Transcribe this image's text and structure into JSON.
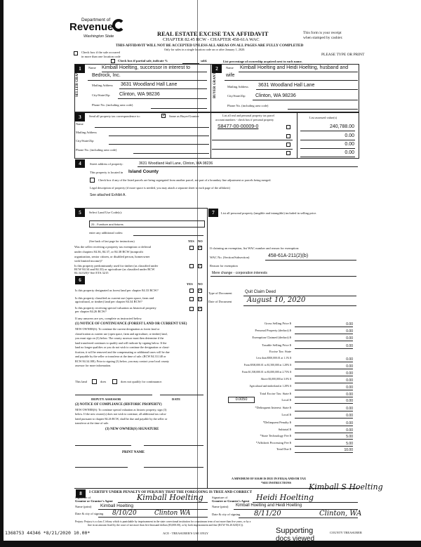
{
  "header": {
    "dept": "Department of",
    "brand": "Revenue",
    "state": "Washington State",
    "title": "REAL ESTATE EXCISE TAX AFFIDAVIT",
    "chapter": "CHAPTER 82.45 RCW - CHAPTER 458-61A WAC",
    "receipt1": "This form is your receipt",
    "receipt2": "when stamped by cashier.",
    "warning": "THIS AFFIDAVIT WILL NOT BE ACCEPTED UNLESS ALL AREAS ON ALL PAGES ARE FULLY COMPLETED",
    "only_sales": "Only for sales in a single location code on or after January 1, 2020.",
    "multi1": "Check box if the sale occurred",
    "multi2": "in more than one location code",
    "please": "PLEASE TYPE OR PRINT",
    "partial": "Check box if partial sale, indicate %",
    "sold": "sold.",
    "list_pct": "List percentage of ownership acquired next to each name."
  },
  "seller": {
    "side": "SELLER GRANTOR",
    "name_label": "Name",
    "name1": "Kimball Hoelting, successor in interest to",
    "name2": "Bedrock, Inc.",
    "addr_label": "Mailing Address",
    "addr": "3631 Woodland Hall Lane",
    "city_label": "City/State/Zip",
    "city": "Clinton, WA  98236",
    "phone_label": "Phone No. (including area code)"
  },
  "buyer": {
    "side": "BUYER GRANTEE",
    "name_label": "Name",
    "name1": "Kimball Hoelting and Heidi Hoelting, husband and",
    "name2": "wife",
    "addr_label": "Mailing Address",
    "addr": "3631 Woodland Hall Lane",
    "city_label": "City/State/Zip",
    "city": "Clinton, WA  98236",
    "phone_label": "Phone No. (including area code)"
  },
  "sec3": {
    "send": "Send all property tax correspondence to:",
    "same": "Same as Buyer/Grantee",
    "same_checked": true,
    "name": "Name",
    "addr": "Mailing Address",
    "city": "City/State/Zip",
    "phone": "Phone No. (including area code)",
    "parcel_head1": "List all real and personal property tax parcel",
    "parcel_head2": "account numbers - check box if personal property",
    "value_head": "List assessed value(s)",
    "parcels": [
      {
        "num": "S8477-00-00009-0",
        "value": "240,788.00"
      },
      {
        "num": "",
        "value": "0.00"
      },
      {
        "num": "",
        "value": "0.00"
      },
      {
        "num": "",
        "value": "0.00"
      }
    ]
  },
  "sec4": {
    "street_label": "Street address of property:",
    "street": "3631 Woodland Hall Lane, Clinton, WA  98236",
    "located": "This property is located in",
    "county": "Island County",
    "segregated": "Check box if any of the listed parcels are being segregated from another parcel, are part of a boundary line adjustment or parcels being merged.",
    "legal": "Legal description of property (if more space is needed, you may attach a separate sheet to each page of the affidavit)",
    "exhibit": "See attached Exhibit A."
  },
  "sec5": {
    "label": "Select Land Use Code(s):",
    "code": "25 - Furniture and fixtures",
    "additional": "enter any additional codes:",
    "see_back": "(See back of last page for instructions)",
    "yes": "YES",
    "no": "NO",
    "q1a": "Was the seller receiving a property tax exemption or deferral",
    "q1b": "under chapters 84.36, 84.37, or 84.38 RCW (nonprofit",
    "q1c": "organization, senior citizen, or disabled person, homeowner",
    "q1d": "with limited income)?",
    "q2a": "Is this property predominantly used for timber (as classified under",
    "q2b": "RCW 84.34 and 84.33) or agriculture (as classified under RCW",
    "q2c": "84.34.020)? See ETA 3215"
  },
  "sec6": {
    "yes": "YES",
    "no": "NO",
    "q1": "Is this property designated as forest land per chapter 84.33 RCW?",
    "q2a": "Is this property classified as current use (open space, farm and",
    "q2b": "agricultural, or timber) land per chapter 84.34 RCW?",
    "q3a": "Is this property receiving special valuation as historical property",
    "q3b": "per chapter 84.26 RCW?",
    "if_yes": "If any answers are yes, complete as instructed below.",
    "n1_title": "(1) NOTICE OF CONTINUANCE (FOREST LAND OR CURRENT USE)",
    "n1_lines": [
      "NEW OWNER(S): To continue the current designation as forest land or",
      "classification as current use (open space, farm and agriculture, or timber) land,",
      "you must sign on (3) below. The county assessor must then determine if the",
      "land transferred continues to qualify and will indicate by signing below. If the",
      "land no longer qualifies or you do not wish to continue the designation or classi-",
      "fication, it will be removed and the compensating or additional taxes will be due",
      "and payable by the seller or transferor at the time of sale. (RCW 84.33.140 or",
      "RCW 84.34.108). Prior to signing (3) below, you may contact your local county",
      "assessor for more information."
    ],
    "this_land": "This land",
    "does": "does",
    "does_not": "does not qualify for continuance.",
    "deputy": "DEPUTY ASSESSOR",
    "date": "DATE",
    "n2_title": "(2) NOTICE OF COMPLIANCE (HISTORIC PROPERTY)",
    "n2_lines": [
      "NEW OWNER(S): To continue special valuation as historic property, sign (3)",
      "below. If the new owner(s) does not wish to continue, all additional tax calcu-",
      "lated pursuant to chapter 84.26 RCW, shall be due and payable by the seller or",
      "transferor at the time of sale."
    ],
    "n3": "(3) NEW OWNER(S) SIGNATURE",
    "print_name": "PRINT NAME"
  },
  "sec7": {
    "label": "List all personal property (tangible and intangible) included in selling price.",
    "claim": "If claiming an exemption, list WAC number and reason for exemption:",
    "wac_label": "WAC No. (Section/Subsection)",
    "wac": "458-61A-211(2)(b)",
    "reason_label": "Reason for exemption",
    "reason": "Mere change - corporation interests",
    "type_label": "Type of Document",
    "type": "Quit Claim Deed",
    "date_label": "Date of Document",
    "date": "August 10, 2020",
    "rows": [
      {
        "label": "Gross Selling Price  $",
        "value": "0.00"
      },
      {
        "label": "Personal Property (deduct)  $",
        "value": "0.00"
      },
      {
        "label": "Exemption Claimed (deduct)  $",
        "value": "0.00"
      },
      {
        "label": "Taxable Selling Price  $",
        "value": "0.00"
      },
      {
        "label": "Excise Tax: State",
        "value": ""
      },
      {
        "label": "Less than $500,000.01 at 1.1%  $",
        "value": "0.00"
      },
      {
        "label": "From $500,000.01 to $1,500,000 at 1.28%  $",
        "value": "0.00"
      },
      {
        "label": "From $1,500,000.01 to $3,000,000 at 2.75%  $",
        "value": "0.00"
      },
      {
        "label": "Above $3,000,000 at 3.0%  $",
        "value": "0.00"
      },
      {
        "label": "Agricultural and timberland at 1.28%  $",
        "value": "0.00"
      },
      {
        "label": "Total Excise Tax: State  $",
        "value": "0.00"
      },
      {
        "label": "Local  $",
        "value": "0.00"
      },
      {
        "label": "*Delinquent Interest: State  $",
        "value": "0.00"
      },
      {
        "label": "Local  $",
        "value": "0.00"
      },
      {
        "label": "*Delinquent Penalty  $",
        "value": "0.00"
      },
      {
        "label": "Subtotal  $",
        "value": "0.00"
      },
      {
        "label": "*State Technology Fee  $",
        "value": "5.00"
      },
      {
        "label": "*Affidavit Processing Fee  $",
        "value": "5.00"
      },
      {
        "label": "Total Due  $",
        "value": "10.00"
      }
    ],
    "local_rate": "0.0050",
    "minimum": "A MINIMUM OF $10.00 IS DUE IN FEE(S) AND/OR TAX",
    "see": "*SEE INSTRUCTIONS"
  },
  "sec8": {
    "certify": "I CERTIFY UNDER PENALTY OF PERJURY THAT THE FOREGOING IS TRUE AND CORRECT",
    "grantor_sig_label1": "Signature of",
    "grantor_sig_label2": "Grantor or Grantor's Agent",
    "grantor_sig": "Kimball Hoelting",
    "grantor_name_label": "Name (print)",
    "grantor_name": "Kimball Hoelting",
    "grantor_date_label": "Date & city of signing",
    "grantor_date": "8/10/20",
    "grantor_city": "Clinton WA",
    "grantee_sig_label1": "Signature of",
    "grantee_sig_label2": "Grantee or Grantee's Agent",
    "grantee_sig1": "Kimball S Hoelting",
    "grantee_sig2": "Heidi Hoelting",
    "grantee_name_label": "Name (print)",
    "grantee_name": "Kimball Hoelting and Heidi Hoelting",
    "grantee_date_label": "Date & city of signing",
    "grantee_date": "8/11/20",
    "grantee_city": "Clinton, WA",
    "perjury1": "Perjury: Perjury is a class C felony which is punishable by imprisonment in the state correctional institution for a maximum term of not more than five years, or by a",
    "perjury2": "fine in an amount fixed by the court of not more than five thousand dollars ($5,000.00), or by both imprisonment and fine (RCW 9A.20.020(1C))."
  },
  "footer": {
    "stamp": "1368753 44346 *8/21/2020 10.00*",
    "treasurer_use": "ACE - TREASURER'S USE ONLY",
    "county_treasurer": "COUNTY TREASURER",
    "supporting1": "Supporting",
    "supporting2": "docs viewed"
  }
}
